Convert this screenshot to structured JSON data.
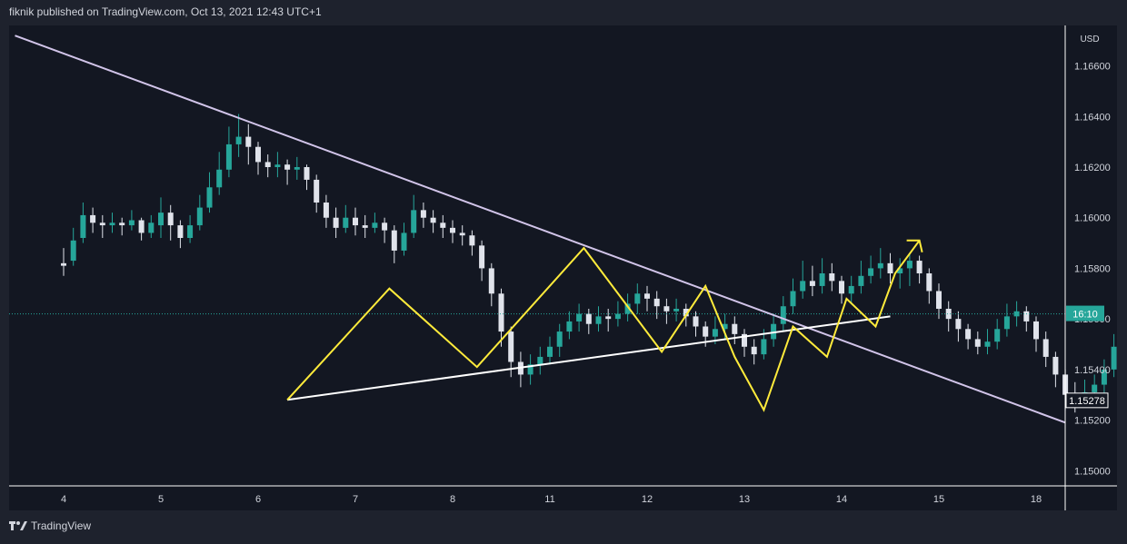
{
  "header": {
    "text": "fiknik published on TradingView.com, Oct 13, 2021 12:43 UTC+1"
  },
  "footer": {
    "brand": "TradingView"
  },
  "chart_data": {
    "type": "candlestick",
    "symbol_currency": "USD",
    "x_ticks": [
      "4",
      "5",
      "6",
      "7",
      "8",
      "11",
      "12",
      "13",
      "14",
      "15",
      "18"
    ],
    "y_ticks": [
      1.15,
      1.152,
      1.154,
      1.156,
      1.158,
      1.16,
      1.162,
      1.164,
      1.166
    ],
    "y_tick_labels": [
      "1.15000",
      "1.15200",
      "1.15400",
      "1.15600",
      "1.15800",
      "1.16000",
      "1.16200",
      "1.16400",
      "1.16600"
    ],
    "ylim": [
      1.1494,
      1.1676
    ],
    "current_price_label": "16:10",
    "low_marker_label": "1.15278",
    "grid": false,
    "colors": {
      "up": "#26a69a",
      "down": "#e0e3eb",
      "trend": "#d1c4e9",
      "pattern": "#ffeb3b",
      "support": "#ffffff",
      "bg": "#131722",
      "axis_text": "#d1d4dc"
    },
    "candles": [
      [
        0.0,
        1.1582,
        1.1581,
        1.1588,
        1.1577
      ],
      [
        0.1,
        1.1583,
        1.1591,
        1.1596,
        1.1581
      ],
      [
        0.2,
        1.1592,
        1.1601,
        1.1606,
        1.159
      ],
      [
        0.3,
        1.1601,
        1.1598,
        1.1604,
        1.1594
      ],
      [
        0.4,
        1.1598,
        1.1597,
        1.1601,
        1.1592
      ],
      [
        0.5,
        1.1597,
        1.1598,
        1.1602,
        1.1594
      ],
      [
        0.6,
        1.1598,
        1.1597,
        1.16,
        1.1593
      ],
      [
        0.7,
        1.1597,
        1.1599,
        1.1603,
        1.1595
      ],
      [
        0.8,
        1.1599,
        1.1594,
        1.16,
        1.1591
      ],
      [
        0.9,
        1.1594,
        1.1598,
        1.1601,
        1.1592
      ],
      [
        1.0,
        1.1597,
        1.1602,
        1.1608,
        1.1592
      ],
      [
        1.1,
        1.1602,
        1.1597,
        1.1605,
        1.1591
      ],
      [
        1.2,
        1.1597,
        1.1592,
        1.1599,
        1.1588
      ],
      [
        1.3,
        1.1592,
        1.1597,
        1.1601,
        1.159
      ],
      [
        1.4,
        1.1597,
        1.1604,
        1.1609,
        1.1595
      ],
      [
        1.5,
        1.1604,
        1.1612,
        1.1618,
        1.1602
      ],
      [
        1.6,
        1.1612,
        1.1619,
        1.1626,
        1.1609
      ],
      [
        1.7,
        1.1619,
        1.1629,
        1.1636,
        1.1616
      ],
      [
        1.8,
        1.1629,
        1.1632,
        1.1641,
        1.1624
      ],
      [
        1.9,
        1.1632,
        1.1628,
        1.1637,
        1.1621
      ],
      [
        2.0,
        1.1628,
        1.1622,
        1.163,
        1.1617
      ],
      [
        2.1,
        1.1622,
        1.162,
        1.1625,
        1.1616
      ],
      [
        2.2,
        1.162,
        1.1621,
        1.1626,
        1.1616
      ],
      [
        2.3,
        1.1621,
        1.1619,
        1.1623,
        1.1613
      ],
      [
        2.4,
        1.1619,
        1.162,
        1.1624,
        1.1615
      ],
      [
        2.5,
        1.162,
        1.1615,
        1.1621,
        1.1611
      ],
      [
        2.6,
        1.1615,
        1.1606,
        1.1617,
        1.1602
      ],
      [
        2.7,
        1.1606,
        1.16,
        1.1609,
        1.1596
      ],
      [
        2.8,
        1.16,
        1.1596,
        1.1604,
        1.1592
      ],
      [
        2.9,
        1.1596,
        1.16,
        1.1605,
        1.1594
      ],
      [
        3.0,
        1.16,
        1.1597,
        1.1604,
        1.1593
      ],
      [
        3.1,
        1.1597,
        1.1596,
        1.1601,
        1.1592
      ],
      [
        3.2,
        1.1596,
        1.1598,
        1.1602,
        1.1594
      ],
      [
        3.3,
        1.1598,
        1.1595,
        1.16,
        1.159
      ],
      [
        3.4,
        1.1595,
        1.1587,
        1.1597,
        1.1582
      ],
      [
        3.5,
        1.1587,
        1.1594,
        1.1598,
        1.1585
      ],
      [
        3.6,
        1.1594,
        1.1603,
        1.1609,
        1.1592
      ],
      [
        3.7,
        1.1603,
        1.16,
        1.1606,
        1.1596
      ],
      [
        3.8,
        1.16,
        1.1598,
        1.1603,
        1.1594
      ],
      [
        3.9,
        1.1598,
        1.1596,
        1.1601,
        1.1592
      ],
      [
        4.0,
        1.1596,
        1.1594,
        1.1599,
        1.159
      ],
      [
        4.1,
        1.1594,
        1.1593,
        1.1597,
        1.1589
      ],
      [
        4.2,
        1.1593,
        1.1589,
        1.1595,
        1.1585
      ],
      [
        4.3,
        1.1589,
        1.158,
        1.1591,
        1.1575
      ],
      [
        4.4,
        1.158,
        1.157,
        1.1582,
        1.1565
      ],
      [
        4.5,
        1.157,
        1.1555,
        1.1572,
        1.1549
      ],
      [
        4.6,
        1.1555,
        1.1543,
        1.1557,
        1.1537
      ],
      [
        4.7,
        1.1543,
        1.1538,
        1.1547,
        1.1533
      ],
      [
        4.8,
        1.1538,
        1.1542,
        1.1546,
        1.1534
      ],
      [
        4.9,
        1.1542,
        1.1545,
        1.1549,
        1.1538
      ],
      [
        5.0,
        1.1545,
        1.1549,
        1.1553,
        1.1542
      ],
      [
        5.1,
        1.1549,
        1.1555,
        1.1558,
        1.1545
      ],
      [
        5.2,
        1.1555,
        1.1559,
        1.1563,
        1.1552
      ],
      [
        5.3,
        1.1559,
        1.1562,
        1.1566,
        1.1555
      ],
      [
        5.4,
        1.1562,
        1.1558,
        1.1564,
        1.1554
      ],
      [
        5.5,
        1.1558,
        1.1561,
        1.1565,
        1.1555
      ],
      [
        5.6,
        1.1561,
        1.156,
        1.1564,
        1.1555
      ],
      [
        5.7,
        1.156,
        1.1562,
        1.1567,
        1.1557
      ],
      [
        5.8,
        1.1562,
        1.1566,
        1.157,
        1.1559
      ],
      [
        5.9,
        1.1566,
        1.157,
        1.1574,
        1.1562
      ],
      [
        6.0,
        1.157,
        1.1568,
        1.1573,
        1.1563
      ],
      [
        6.1,
        1.1568,
        1.1565,
        1.1571,
        1.156
      ],
      [
        6.2,
        1.1565,
        1.1563,
        1.1568,
        1.1558
      ],
      [
        6.3,
        1.1563,
        1.1564,
        1.1568,
        1.1559
      ],
      [
        6.4,
        1.1564,
        1.1561,
        1.1566,
        1.1557
      ],
      [
        6.5,
        1.1561,
        1.1557,
        1.1563,
        1.1553
      ],
      [
        6.6,
        1.1557,
        1.1553,
        1.1559,
        1.1549
      ],
      [
        6.7,
        1.1553,
        1.1556,
        1.1561,
        1.155
      ],
      [
        6.8,
        1.1556,
        1.1558,
        1.1562,
        1.1552
      ],
      [
        6.9,
        1.1558,
        1.1554,
        1.1561,
        1.155
      ],
      [
        7.0,
        1.1554,
        1.1549,
        1.1556,
        1.1545
      ],
      [
        7.1,
        1.1549,
        1.1546,
        1.1552,
        1.1542
      ],
      [
        7.2,
        1.1546,
        1.1552,
        1.1556,
        1.1544
      ],
      [
        7.3,
        1.1552,
        1.1558,
        1.1562,
        1.1549
      ],
      [
        7.4,
        1.1558,
        1.1565,
        1.1569,
        1.1555
      ],
      [
        7.5,
        1.1565,
        1.1571,
        1.1576,
        1.1562
      ],
      [
        7.6,
        1.1571,
        1.1575,
        1.1583,
        1.1568
      ],
      [
        7.7,
        1.1575,
        1.1573,
        1.1581,
        1.1569
      ],
      [
        7.8,
        1.1573,
        1.1578,
        1.1584,
        1.157
      ],
      [
        7.9,
        1.1578,
        1.1575,
        1.1582,
        1.1571
      ],
      [
        8.0,
        1.1575,
        1.157,
        1.1577,
        1.1566
      ],
      [
        8.1,
        1.157,
        1.1573,
        1.1577,
        1.1566
      ],
      [
        8.2,
        1.1573,
        1.1577,
        1.1583,
        1.157
      ],
      [
        8.3,
        1.1577,
        1.158,
        1.1585,
        1.1574
      ],
      [
        8.4,
        1.158,
        1.1582,
        1.1588,
        1.1576
      ],
      [
        8.5,
        1.1582,
        1.1578,
        1.1586,
        1.1574
      ],
      [
        8.6,
        1.1578,
        1.158,
        1.1584,
        1.1572
      ],
      [
        8.7,
        1.158,
        1.1583,
        1.1586,
        1.1573
      ],
      [
        8.8,
        1.1583,
        1.1578,
        1.1585,
        1.1574
      ],
      [
        8.9,
        1.1578,
        1.1571,
        1.158,
        1.1566
      ],
      [
        9.0,
        1.1571,
        1.1564,
        1.1574,
        1.156
      ],
      [
        9.1,
        1.1564,
        1.156,
        1.1567,
        1.1555
      ],
      [
        9.2,
        1.156,
        1.1556,
        1.1563,
        1.1551
      ],
      [
        9.3,
        1.1556,
        1.1552,
        1.1558,
        1.1548
      ],
      [
        9.4,
        1.1552,
        1.1549,
        1.1555,
        1.1546
      ],
      [
        9.5,
        1.1549,
        1.1551,
        1.1556,
        1.1546
      ],
      [
        9.6,
        1.1551,
        1.1556,
        1.156,
        1.1548
      ],
      [
        9.7,
        1.1556,
        1.1561,
        1.1566,
        1.1553
      ],
      [
        9.8,
        1.1561,
        1.1563,
        1.1567,
        1.1557
      ],
      [
        9.9,
        1.1563,
        1.1559,
        1.1565,
        1.1555
      ],
      [
        10.0,
        1.1559,
        1.1552,
        1.1561,
        1.1547
      ],
      [
        10.1,
        1.1552,
        1.1545,
        1.1555,
        1.1541
      ],
      [
        10.2,
        1.1545,
        1.1538,
        1.1547,
        1.1533
      ],
      [
        10.3,
        1.1538,
        1.153,
        1.154,
        1.1524
      ],
      [
        10.4,
        1.153,
        1.1528,
        1.1535,
        1.1523
      ],
      [
        10.5,
        1.1528,
        1.1531,
        1.1536,
        1.1525
      ],
      [
        10.6,
        1.1531,
        1.1534,
        1.1538,
        1.1528
      ],
      [
        10.7,
        1.1534,
        1.154,
        1.1544,
        1.153
      ],
      [
        10.8,
        1.154,
        1.1549,
        1.1554,
        1.1537
      ],
      [
        10.9,
        1.1549,
        1.1554,
        1.1558,
        1.1545
      ],
      [
        11.0,
        1.1554,
        1.1551,
        1.1557,
        1.1546
      ],
      [
        11.1,
        1.1551,
        1.1553,
        1.1557,
        1.1548
      ],
      [
        11.2,
        1.1553,
        1.1556,
        1.1561,
        1.155
      ],
      [
        11.3,
        1.1556,
        1.1561,
        1.1564,
        1.1553
      ]
    ],
    "trendlines": [
      {
        "name": "descending-resistance",
        "points": [
          [
            -0.5,
            1.1672
          ],
          [
            10.3,
            1.1519
          ]
        ]
      },
      {
        "name": "ascending-support",
        "points": [
          [
            2.3,
            1.1528
          ],
          [
            8.5,
            1.1561
          ]
        ]
      }
    ],
    "pattern_path": [
      [
        2.3,
        1.1528
      ],
      [
        3.35,
        1.1572
      ],
      [
        4.25,
        1.1541
      ],
      [
        5.35,
        1.1588
      ],
      [
        6.15,
        1.1547
      ],
      [
        6.6,
        1.1573
      ],
      [
        6.9,
        1.1545
      ],
      [
        7.2,
        1.1524
      ],
      [
        7.5,
        1.1557
      ],
      [
        7.85,
        1.1545
      ],
      [
        8.05,
        1.1568
      ],
      [
        8.35,
        1.1557
      ],
      [
        8.55,
        1.1578
      ],
      [
        8.8,
        1.1591
      ]
    ],
    "current_price": 1.1562
  }
}
